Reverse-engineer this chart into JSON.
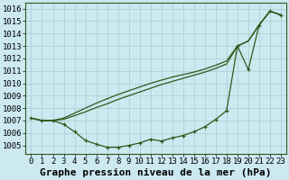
{
  "xlabel": "Graphe pression niveau de la mer (hPa)",
  "x_ticks": [
    0,
    1,
    2,
    3,
    4,
    5,
    6,
    7,
    8,
    9,
    10,
    11,
    12,
    13,
    14,
    15,
    16,
    17,
    18,
    19,
    20,
    21,
    22,
    23
  ],
  "ylim": [
    1004.3,
    1016.5
  ],
  "xlim": [
    -0.5,
    23.5
  ],
  "yticks": [
    1005,
    1006,
    1007,
    1008,
    1009,
    1010,
    1011,
    1012,
    1013,
    1014,
    1015,
    1016
  ],
  "bg_color": "#cce8f0",
  "grid_color": "#aad4d4",
  "line_color": "#2d5a1b",
  "font_size_xlabel": 8,
  "tick_font_size": 6.5,
  "line_main_x": [
    0,
    1,
    2,
    3,
    4,
    5,
    6,
    7,
    8,
    9,
    10,
    11,
    12,
    13,
    14,
    15,
    16,
    17,
    18,
    19,
    20,
    21,
    22,
    23
  ],
  "line_main_y": [
    1007.2,
    1007.0,
    1007.0,
    1006.7,
    1006.1,
    1005.4,
    1005.1,
    1004.85,
    1004.85,
    1005.0,
    1005.2,
    1005.5,
    1005.35,
    1005.6,
    1005.8,
    1006.1,
    1006.5,
    1007.1,
    1007.8,
    1013.0,
    1011.1,
    1014.7,
    1015.8,
    1015.5
  ],
  "line_straight1_y": [
    1007.2,
    1007.0,
    1007.0,
    1007.1,
    1007.4,
    1007.7,
    1008.05,
    1008.35,
    1008.7,
    1009.0,
    1009.3,
    1009.6,
    1009.9,
    1010.15,
    1010.4,
    1010.65,
    1010.9,
    1011.2,
    1011.55,
    1013.0,
    1013.4,
    1014.7,
    1015.8,
    1015.5
  ],
  "line_straight2_y": [
    1007.2,
    1007.0,
    1007.0,
    1007.2,
    1007.6,
    1008.0,
    1008.4,
    1008.75,
    1009.1,
    1009.4,
    1009.7,
    1010.0,
    1010.25,
    1010.5,
    1010.7,
    1010.9,
    1011.15,
    1011.45,
    1011.8,
    1013.0,
    1013.4,
    1014.7,
    1015.8,
    1015.5
  ]
}
